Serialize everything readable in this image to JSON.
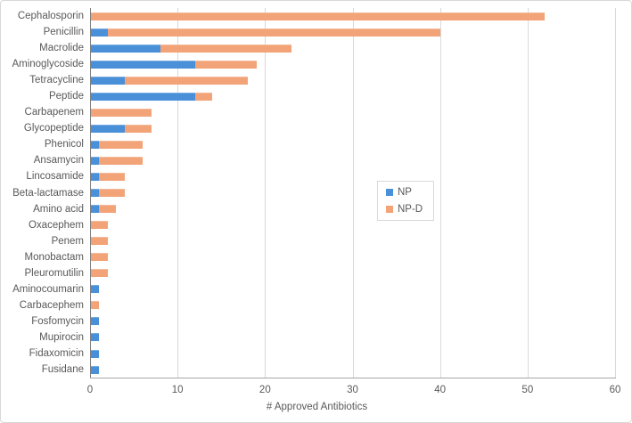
{
  "chart_data": {
    "type": "bar",
    "orientation": "horizontal",
    "stacked": true,
    "title": "",
    "xlabel": "# Approved Antibiotics",
    "ylabel": "",
    "xlim": [
      0,
      60
    ],
    "xticks": [
      0,
      10,
      20,
      30,
      40,
      50,
      60
    ],
    "grid": "vertical",
    "legend_position": "center",
    "categories": [
      "Cephalosporin",
      "Penicillin",
      "Macrolide",
      "Aminoglycoside",
      "Tetracycline",
      "Peptide",
      "Carbapenem",
      "Glycopeptide",
      "Phenicol",
      "Ansamycin",
      "Lincosamide",
      "Beta-lactamase",
      "Amino acid",
      "Oxacephem",
      "Penem",
      "Monobactam",
      "Pleuromutilin",
      "Aminocoumarin",
      "Carbacephem",
      "Fosfomycin",
      "Mupirocin",
      "Fidaxomicin",
      "Fusidane"
    ],
    "series": [
      {
        "name": "NP",
        "color": "#4a90d9",
        "values": [
          0,
          2,
          8,
          12,
          4,
          12,
          0,
          4,
          1,
          1,
          1,
          1,
          1,
          0,
          0,
          0,
          0,
          1,
          0,
          1,
          1,
          1,
          1
        ]
      },
      {
        "name": "NP-D",
        "color": "#f2a378",
        "values": [
          52,
          38,
          15,
          7,
          14,
          2,
          7,
          3,
          5,
          5,
          3,
          3,
          2,
          2,
          2,
          2,
          2,
          0,
          1,
          0,
          0,
          0,
          0
        ]
      }
    ]
  },
  "colors": {
    "np": "#4a90d9",
    "npd": "#f2a378",
    "text": "#595959",
    "gridline": "#d9d9d9",
    "axis": "#808080",
    "border": "#d8d8d8"
  }
}
